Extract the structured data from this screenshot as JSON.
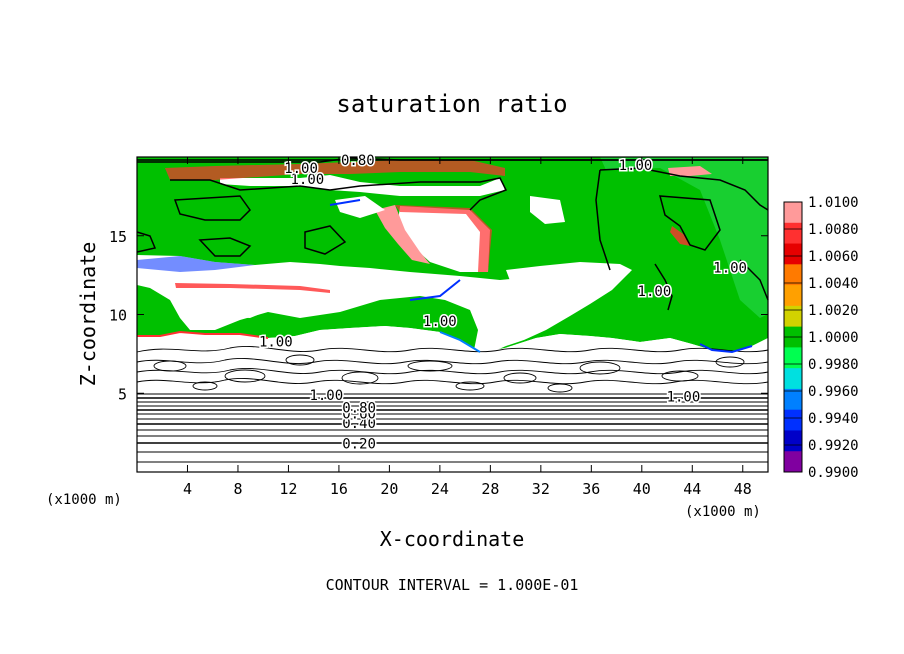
{
  "chart_data": {
    "type": "heatmap",
    "title": "saturation ratio",
    "xlabel": "X-coordinate",
    "ylabel": "Z-coordinate",
    "x_unit_label": "(x1000 m)",
    "z_unit_label": "(x1000 m)",
    "xlim": [
      0,
      50
    ],
    "ylim": [
      0,
      20
    ],
    "x_ticks": [
      "4",
      "8",
      "12",
      "16",
      "20",
      "24",
      "28",
      "32",
      "36",
      "40",
      "44",
      "48"
    ],
    "y_ticks": [
      "5",
      "10",
      "15"
    ],
    "footer": "CONTOUR INTERVAL = 1.000E-01",
    "colorbar": {
      "levels": [
        "1.0100",
        "1.0080",
        "1.0060",
        "1.0040",
        "1.0020",
        "1.0000",
        "0.9980",
        "0.9960",
        "0.9940",
        "0.9920",
        "0.9900"
      ],
      "colors": [
        "#ff9a9a",
        "#ff3030",
        "#e60000",
        "#ff7a00",
        "#ffa000",
        "#d2d200",
        "#00c000",
        "#00ff50",
        "#00e0e0",
        "#0080ff",
        "#0030ff",
        "#0000c8",
        "#8000a0"
      ]
    },
    "contour_labels": [
      {
        "text": "0.20",
        "x": 17.6,
        "z": 1.8
      },
      {
        "text": "0.40",
        "x": 17.6,
        "z": 3.1
      },
      {
        "text": "0.60",
        "x": 17.6,
        "z": 3.7
      },
      {
        "text": "0.80",
        "x": 17.6,
        "z": 4.1
      },
      {
        "text": "1.00",
        "x": 15.0,
        "z": 4.9
      },
      {
        "text": "1.00",
        "x": 43.3,
        "z": 4.8
      },
      {
        "text": "1.00",
        "x": 11.0,
        "z": 8.3
      },
      {
        "text": "1.00",
        "x": 24.0,
        "z": 9.6
      },
      {
        "text": "1.00",
        "x": 41.0,
        "z": 11.5
      },
      {
        "text": "1.00",
        "x": 47.0,
        "z": 13.0
      },
      {
        "text": "1.00",
        "x": 13.5,
        "z": 18.6
      },
      {
        "text": "1.00",
        "x": 13.0,
        "z": 19.3
      },
      {
        "text": "0.80",
        "x": 17.5,
        "z": 19.8
      },
      {
        "text": "1.00",
        "x": 39.5,
        "z": 19.5
      }
    ]
  }
}
